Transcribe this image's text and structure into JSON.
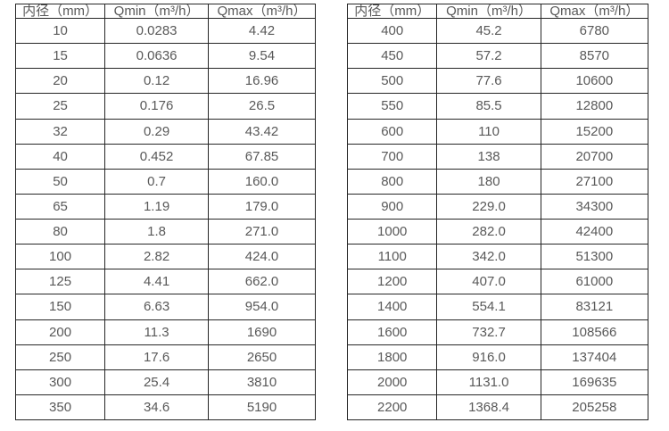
{
  "page": {
    "background": "#ffffff",
    "border_color": "#262626",
    "text_color": "#595959"
  },
  "tables": [
    {
      "name": "flow-table-small-diameters",
      "headers": [
        "内径（mm）",
        "Qmin（m³/h）",
        "Qmax（m³/h）"
      ],
      "rows": [
        [
          "10",
          "0.0283",
          "4.42"
        ],
        [
          "15",
          "0.0636",
          "9.54"
        ],
        [
          "20",
          "0.12",
          "16.96"
        ],
        [
          "25",
          "0.176",
          "26.5"
        ],
        [
          "32",
          "0.29",
          "43.42"
        ],
        [
          "40",
          "0.452",
          "67.85"
        ],
        [
          "50",
          "0.7",
          "160.0"
        ],
        [
          "65",
          "1.19",
          "179.0"
        ],
        [
          "80",
          "1.8",
          "271.0"
        ],
        [
          "100",
          "2.82",
          "424.0"
        ],
        [
          "125",
          "4.41",
          "662.0"
        ],
        [
          "150",
          "6.63",
          "954.0"
        ],
        [
          "200",
          "11.3",
          "1690"
        ],
        [
          "250",
          "17.6",
          "2650"
        ],
        [
          "300",
          "25.4",
          "3810"
        ],
        [
          "350",
          "34.6",
          "5190"
        ]
      ]
    },
    {
      "name": "flow-table-large-diameters",
      "headers": [
        "内径（mm）",
        "Qmin（m³/h）",
        "Qmax（m³/h）"
      ],
      "rows": [
        [
          "400",
          "45.2",
          "6780"
        ],
        [
          "450",
          "57.2",
          "8570"
        ],
        [
          "500",
          "77.6",
          "10600"
        ],
        [
          "550",
          "85.5",
          "12800"
        ],
        [
          "600",
          "110",
          "15200"
        ],
        [
          "700",
          "138",
          "20700"
        ],
        [
          "800",
          "180",
          "27100"
        ],
        [
          "900",
          "229.0",
          "34300"
        ],
        [
          "1000",
          "282.0",
          "42400"
        ],
        [
          "1100",
          "342.0",
          "51300"
        ],
        [
          "1200",
          "407.0",
          "61000"
        ],
        [
          "1400",
          "554.1",
          "83121"
        ],
        [
          "1600",
          "732.7",
          "108566"
        ],
        [
          "1800",
          "916.0",
          "137404"
        ],
        [
          "2000",
          "1131.0",
          "169635"
        ],
        [
          "2200",
          "1368.4",
          "205258"
        ]
      ]
    }
  ]
}
